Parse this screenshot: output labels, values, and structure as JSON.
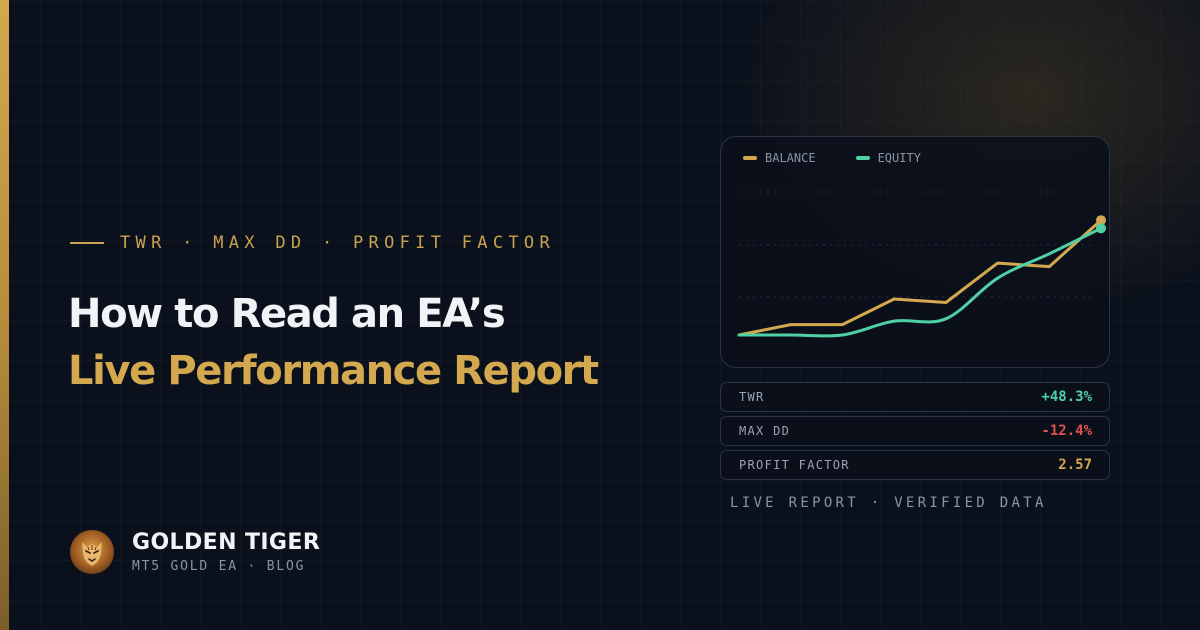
{
  "eyebrow": "TWR · MAX DD · PROFIT FACTOR",
  "headline": {
    "line1": "How to Read an EA’s",
    "line2": "Live Performance Report"
  },
  "brand": {
    "name": "GOLDEN TIGER",
    "subtitle": "MT5 GOLD EA · BLOG",
    "logo_icon": "tiger-head-logo"
  },
  "colors": {
    "background": "#0b111c",
    "gold": "#d4a84e",
    "equity_green": "#4fd1a5",
    "negative_red": "#e0524d",
    "text_white": "#f2f3f6"
  },
  "chart_data": {
    "type": "line",
    "title": "",
    "xlabel": "",
    "ylabel": "",
    "legend_position": "top-left",
    "grid": true,
    "x": [
      0,
      1,
      2,
      3,
      4,
      5,
      6,
      7
    ],
    "xlim": [
      0,
      7
    ],
    "ylim": [
      0,
      100
    ],
    "series": [
      {
        "name": "BALANCE",
        "color": "#d4a84e",
        "values": [
          0,
          9,
          9,
          31,
          28,
          62,
          59,
          99
        ]
      },
      {
        "name": "EQUITY",
        "color": "#4fd1a5",
        "values": [
          0,
          0,
          0,
          12,
          14,
          49,
          70,
          92
        ]
      }
    ]
  },
  "metrics": [
    {
      "label": "TWR",
      "value": "+48.3%",
      "color": "#4fd1a5"
    },
    {
      "label": "MAX DD",
      "value": "-12.4%",
      "color": "#e0524d"
    },
    {
      "label": "PROFIT FACTOR",
      "value": "2.57",
      "color": "#d4a84e"
    }
  ],
  "caption": "LIVE REPORT · VERIFIED DATA"
}
